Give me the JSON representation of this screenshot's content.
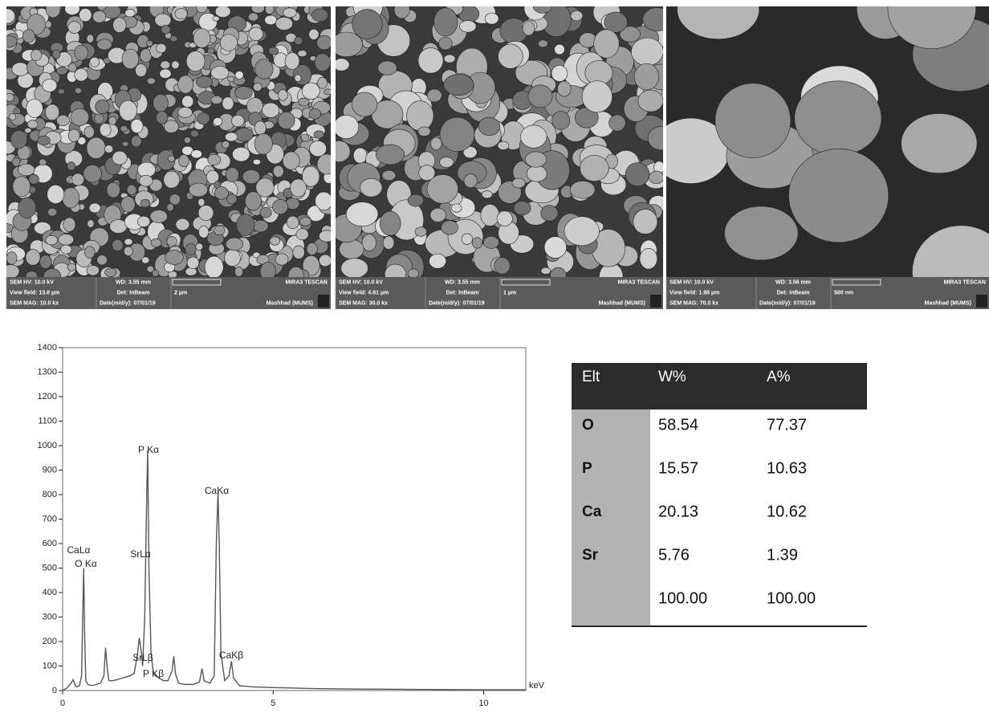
{
  "sem_panels": [
    {
      "hv": "SEM HV: 10.0 kV",
      "wd": "WD: 3.55 mm",
      "brand": "MIRA3 TESCAN",
      "view_field": "View field: 13.8 µm",
      "detector": "Det: InBeam",
      "scale": "2 µm",
      "mag": "SEM MAG: 10.0 kx",
      "date": "Date(m/d/y): 07/01/19",
      "site": "Mashhad (MUMS)"
    },
    {
      "hv": "SEM HV: 10.0 kV",
      "wd": "WD: 3.55 mm",
      "brand": "MIRA3 TESCAN",
      "view_field": "View field: 4.61 µm",
      "detector": "Det: InBeam",
      "scale": "1 µm",
      "mag": "SEM MAG: 30.0 kx",
      "date": "Date(m/d/y): 07/01/19",
      "site": "Mashhad (MUMS)"
    },
    {
      "hv": "SEM HV: 10.0 kV",
      "wd": "WD: 3.56 mm",
      "brand": "MIRA3 TESCAN",
      "view_field": "View field: 1.98 µm",
      "detector": "Det: InBeam",
      "scale": "500 nm",
      "mag": "SEM MAG: 70.0 kx",
      "date": "Date(m/d/y): 07/01/19",
      "site": "Mashhad (MUMS)"
    }
  ],
  "chart_data": {
    "type": "line",
    "x_label": "keV",
    "color": "#555555",
    "xlim": [
      0,
      11
    ],
    "xticks": [
      0,
      5,
      10
    ],
    "ylim": [
      0,
      1400
    ],
    "yticks": [
      0,
      100,
      200,
      300,
      400,
      500,
      600,
      700,
      800,
      900,
      1000,
      1100,
      1200,
      1300,
      1400
    ],
    "x": [
      0,
      0.1,
      0.2,
      0.25,
      0.3,
      0.35,
      0.4,
      0.45,
      0.5,
      0.52,
      0.55,
      0.6,
      0.7,
      0.8,
      0.9,
      0.98,
      1.02,
      1.06,
      1.1,
      1.2,
      1.3,
      1.4,
      1.5,
      1.6,
      1.7,
      1.78,
      1.82,
      1.86,
      1.9,
      1.95,
      2.0,
      2.02,
      2.05,
      2.1,
      2.15,
      2.2,
      2.3,
      2.4,
      2.5,
      2.6,
      2.64,
      2.68,
      2.75,
      2.9,
      3.1,
      3.25,
      3.31,
      3.36,
      3.5,
      3.6,
      3.65,
      3.69,
      3.72,
      3.76,
      3.85,
      3.95,
      4.01,
      4.06,
      4.2,
      4.5,
      5,
      6,
      7,
      8,
      9,
      10,
      11
    ],
    "values": [
      0,
      10,
      30,
      45,
      20,
      15,
      20,
      60,
      500,
      250,
      40,
      25,
      20,
      25,
      30,
      60,
      175,
      90,
      40,
      40,
      45,
      50,
      55,
      60,
      70,
      150,
      215,
      170,
      100,
      300,
      820,
      980,
      500,
      150,
      80,
      60,
      50,
      40,
      40,
      80,
      140,
      70,
      30,
      25,
      25,
      35,
      90,
      40,
      30,
      60,
      600,
      810,
      600,
      150,
      40,
      60,
      120,
      50,
      20,
      15,
      12,
      8,
      6,
      5,
      4,
      3,
      3
    ],
    "annotations": [
      "CaLα",
      "O Kα",
      "P Kα",
      "SrLα",
      "CaKα",
      "SrLβ",
      "P Kβ",
      "CaKβ"
    ]
  },
  "table": {
    "header": [
      "Elt",
      "W%",
      "A%"
    ],
    "rows": [
      [
        "O",
        "58.54",
        "77.37"
      ],
      [
        "P",
        "15.57",
        "10.63"
      ],
      [
        "Ca",
        "20.13",
        "10.62"
      ],
      [
        "Sr",
        "5.76",
        "1.39"
      ]
    ],
    "total": [
      "100.00",
      "100.00"
    ]
  }
}
